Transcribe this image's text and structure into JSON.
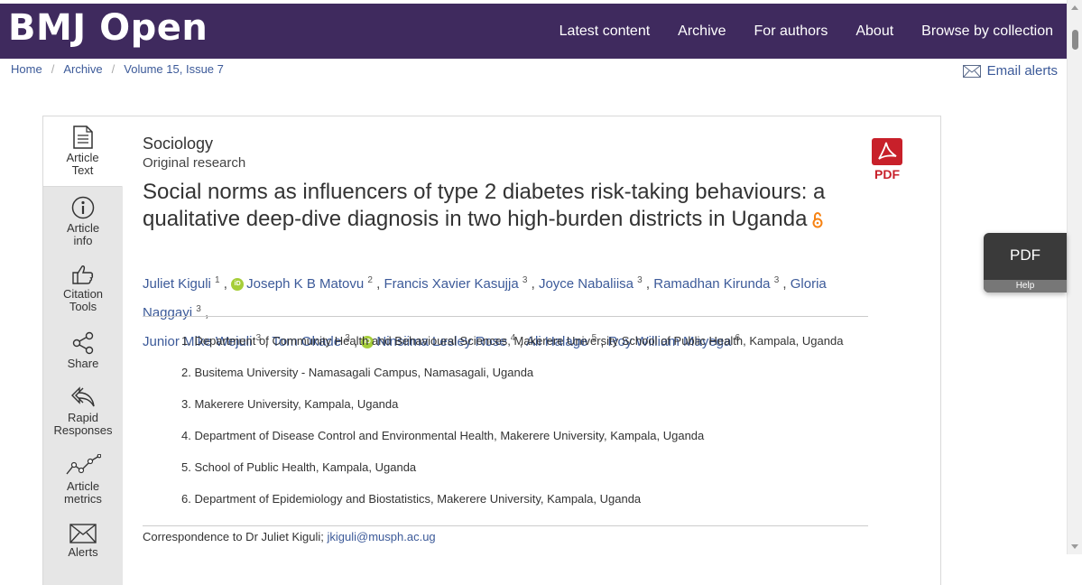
{
  "header": {
    "logo": "BMJ Open",
    "nav": [
      "Latest content",
      "Archive",
      "For authors",
      "About",
      "Browse by collection"
    ]
  },
  "breadcrumb": [
    "Home",
    "Archive",
    "Volume 15, Issue 7"
  ],
  "email_alerts": "Email alerts",
  "side_tabs": {
    "article_text": [
      "Article",
      "Text"
    ],
    "article_info": [
      "Article",
      "info"
    ],
    "citation_tools": [
      "Citation",
      "Tools"
    ],
    "share": "Share",
    "rapid_responses": [
      "Rapid",
      "Responses"
    ],
    "article_metrics": [
      "Article",
      "metrics"
    ],
    "alerts": "Alerts"
  },
  "article": {
    "subject": "Sociology",
    "type": "Original research",
    "title": "Social norms as influencers of type 2 diabetes risk-taking behaviours: a qualitative deep-dive diagnosis in two high-burden districts in Uganda",
    "pdf_label": "PDF",
    "authors": [
      {
        "name": "Juliet Kiguli",
        "aff": "1",
        "orcid": false
      },
      {
        "name": "Joseph K B Matovu",
        "aff": "2",
        "orcid": true
      },
      {
        "name": "Francis Xavier Kasujja",
        "aff": "3",
        "orcid": false
      },
      {
        "name": "Joyce Nabaliisa",
        "aff": "3",
        "orcid": false
      },
      {
        "name": "Ramadhan Kirunda",
        "aff": "3",
        "orcid": false
      },
      {
        "name": "Gloria Naggayi",
        "aff": "3",
        "orcid": false
      },
      {
        "name": "Junior Mike Wejuli",
        "aff": "3",
        "orcid": false
      },
      {
        "name": "Tom Okade",
        "aff": "3",
        "orcid": false
      },
      {
        "name": "Ninsiima Lesley Rose",
        "aff": "4",
        "orcid": true
      },
      {
        "name": "Ali Halage",
        "aff": "5",
        "orcid": false
      },
      {
        "name": "Roy William Mayega",
        "aff": "6",
        "orcid": false
      }
    ],
    "affiliations": [
      "1. Department of Community Health and Behavioural Sciences, Makerere University School of Public Health, Kampala, Uganda",
      "2. Busitema University - Namasagali Campus, Namasagali, Uganda",
      "3. Makerere University, Kampala, Uganda",
      "4. Department of Disease Control and Environmental Health, Makerere University, Kampala, Uganda",
      "5. School of Public Health, Kampala, Uganda",
      "6. Department of Epidemiology and Biostatistics, Makerere University, Kampala, Uganda"
    ],
    "correspondence_label": "Correspondence to Dr Juliet Kiguli;",
    "correspondence_email": "jkiguli@musph.ac.ug"
  },
  "float_button": {
    "label": "PDF",
    "help": "Help"
  },
  "orcid_badge": "iD",
  "colors": {
    "header_bg": "#3f2a5e",
    "link": "#3c5a99",
    "pdf_red": "#c8202a",
    "oa_orange": "#f68212",
    "orcid_green": "#a6ce39"
  },
  "icons": [
    "document-icon",
    "info-icon",
    "thumbs-up-icon",
    "share-icon",
    "reply-icon",
    "metrics-icon",
    "envelope-icon",
    "pdf-icon",
    "open-access-icon",
    "orcid-icon"
  ]
}
